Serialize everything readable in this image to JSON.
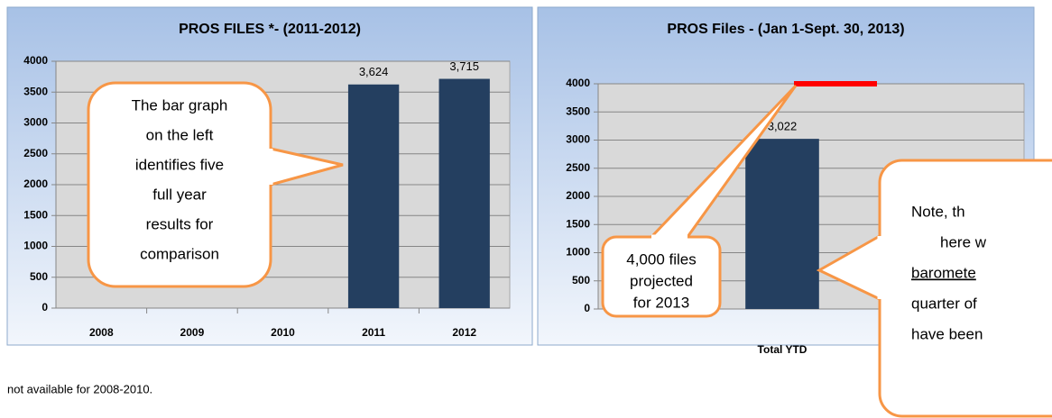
{
  "chart_data": [
    {
      "type": "bar",
      "title": "PROS FILES *- (2011-2012)",
      "categories": [
        "2008",
        "2009",
        "2010",
        "2011",
        "2012"
      ],
      "values": [
        null,
        null,
        null,
        3624,
        3715
      ],
      "value_labels": [
        null,
        null,
        null,
        "3,624",
        "3,715"
      ],
      "color": "#243f60",
      "ylim": [
        0,
        4000
      ],
      "yticks": [
        0,
        500,
        1000,
        1500,
        2000,
        2500,
        3000,
        3500,
        4000
      ],
      "grid": true,
      "annotations": [
        {
          "lines": [
            "The bar graph",
            "on the left",
            "identifies five",
            "full year",
            "results for",
            "comparison"
          ]
        }
      ]
    },
    {
      "type": "bar",
      "title": "PROS Files - (Jan 1-Sept. 30, 2013)",
      "categories": [
        "Total YTD"
      ],
      "values": [
        3022
      ],
      "value_labels": [
        "3,022"
      ],
      "color": "#243f60",
      "ylim": [
        0,
        4000
      ],
      "yticks": [
        0,
        500,
        1000,
        1500,
        2000,
        2500,
        3000,
        3500,
        4000
      ],
      "grid": true,
      "target": {
        "value": 4000,
        "color": "#ff0000"
      },
      "annotations": [
        {
          "lines": [
            "4,000 files",
            "projected",
            "for 2013"
          ]
        },
        {
          "lines": [
            "Note, th",
            "here w",
            "baromete",
            "quarter of",
            "have been"
          ],
          "underlined_line": 2
        }
      ]
    }
  ],
  "footnote": "not available for 2008-2010."
}
